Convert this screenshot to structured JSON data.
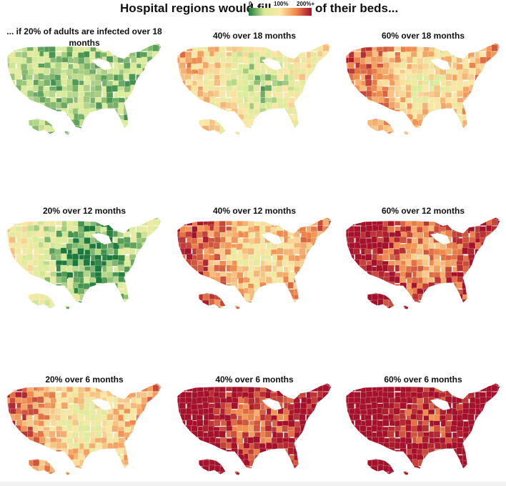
{
  "header": {
    "prefix": "Hospital regions would fill",
    "suffix": "of their beds...",
    "legend": {
      "min_label": "0",
      "mid_label": "100%",
      "max_label": "200%+",
      "colors": [
        "#1a7a3c",
        "#d9ec9a",
        "#fbe7a6",
        "#f08a4b",
        "#a5102a"
      ]
    }
  },
  "panels": [
    {
      "title": "... if 20% of adults are infected over 18 months",
      "infected_share": 20,
      "months": 18,
      "level": 0.0
    },
    {
      "title": "40% over 18 months",
      "infected_share": 40,
      "months": 18,
      "level": 0.38
    },
    {
      "title": "60% over 18 months",
      "infected_share": 60,
      "months": 18,
      "level": 0.55
    },
    {
      "title": "20% over 12 months",
      "infected_share": 20,
      "months": 12,
      "level": 0.18
    },
    {
      "title": "40% over 12 months",
      "infected_share": 40,
      "months": 12,
      "level": 0.62
    },
    {
      "title": "60% over 12 months",
      "infected_share": 60,
      "months": 12,
      "level": 0.82
    },
    {
      "title": "20% over 6 months",
      "infected_share": 20,
      "months": 6,
      "level": 0.55
    },
    {
      "title": "40% over 6 months",
      "infected_share": 40,
      "months": 6,
      "level": 0.92
    },
    {
      "title": "60% over 6 months",
      "infected_share": 60,
      "months": 6,
      "level": 0.99
    }
  ]
}
